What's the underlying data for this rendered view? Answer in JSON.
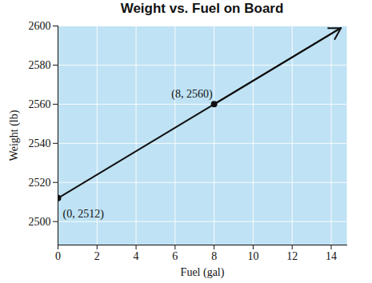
{
  "chart_data": {
    "type": "line",
    "title": "Weight vs. Fuel on Board",
    "x_label": "Fuel (gal)",
    "y_label": "Weight (lb)",
    "x": [
      0,
      8,
      14.5
    ],
    "values": [
      2512,
      2560,
      2599
    ],
    "color": "#111111",
    "line_style": "arrow",
    "annotations": [
      {
        "text": "(8, 2560)",
        "x": 8,
        "y": 2560
      },
      {
        "text": "(0, 2512)",
        "x": 0,
        "y": 2512
      }
    ],
    "xlim": [
      0,
      14.8
    ],
    "xticks": [
      0,
      2,
      4,
      6,
      8,
      10,
      12,
      14
    ],
    "ylim": [
      2488,
      2600
    ],
    "yticks": [
      2500,
      2520,
      2540,
      2560,
      2580,
      2600
    ],
    "grid": true
  }
}
